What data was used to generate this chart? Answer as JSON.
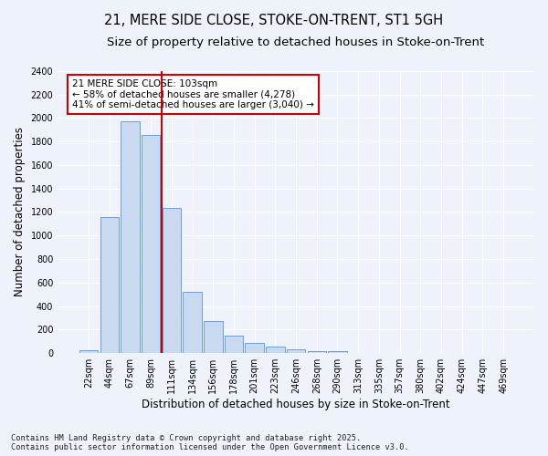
{
  "title1": "21, MERE SIDE CLOSE, STOKE-ON-TRENT, ST1 5GH",
  "title2": "Size of property relative to detached houses in Stoke-on-Trent",
  "xlabel": "Distribution of detached houses by size in Stoke-on-Trent",
  "ylabel": "Number of detached properties",
  "categories": [
    "22sqm",
    "44sqm",
    "67sqm",
    "89sqm",
    "111sqm",
    "134sqm",
    "156sqm",
    "178sqm",
    "201sqm",
    "223sqm",
    "246sqm",
    "268sqm",
    "290sqm",
    "313sqm",
    "335sqm",
    "357sqm",
    "380sqm",
    "402sqm",
    "424sqm",
    "447sqm",
    "469sqm"
  ],
  "values": [
    25,
    1160,
    1970,
    1855,
    1235,
    520,
    275,
    150,
    90,
    55,
    35,
    15,
    15,
    5,
    3,
    2,
    1,
    1,
    1,
    1,
    0
  ],
  "bar_color": "#c9d9f0",
  "bar_edge_color": "#6a9fd8",
  "vline_color": "#cc0000",
  "vline_pos": 4.0,
  "annotation_text": "21 MERE SIDE CLOSE: 103sqm\n← 58% of detached houses are smaller (4,278)\n41% of semi-detached houses are larger (3,040) →",
  "annotation_box_color": "#cc0000",
  "ylim": [
    0,
    2400
  ],
  "yticks": [
    0,
    200,
    400,
    600,
    800,
    1000,
    1200,
    1400,
    1600,
    1800,
    2000,
    2200,
    2400
  ],
  "footnote": "Contains HM Land Registry data © Crown copyright and database right 2025.\nContains public sector information licensed under the Open Government Licence v3.0.",
  "bg_color": "#eef2fa",
  "plot_bg_color": "#eef2fa",
  "grid_color": "#ffffff",
  "title1_fontsize": 10.5,
  "title2_fontsize": 9.5,
  "tick_fontsize": 7,
  "label_fontsize": 8.5,
  "annot_fontsize": 7.5,
  "footnote_fontsize": 6.2
}
